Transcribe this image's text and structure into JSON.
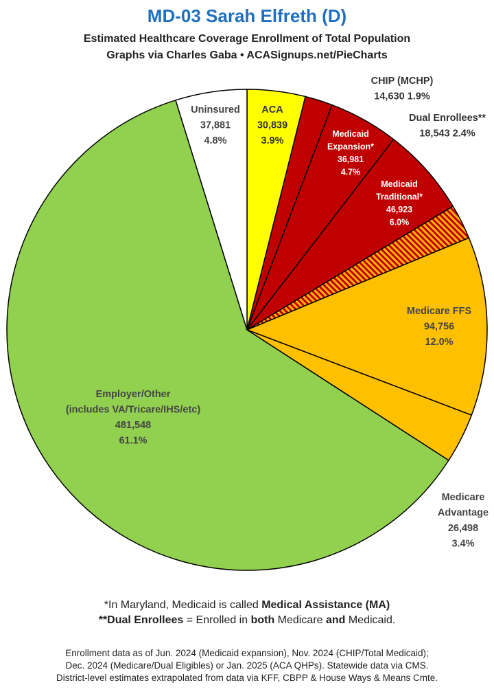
{
  "title": "MD-03 Sarah Elfreth (D)",
  "subtitle_line1": "Estimated Healthcare Coverage Enrollment of Total Population",
  "subtitle_line2": "Graphs via Charles Gaba  •  ACASignups.net/PieCharts",
  "chart_data": {
    "type": "pie",
    "total_start": "12 o'clock, clockwise",
    "slices": [
      {
        "key": "aca",
        "label_lines": [
          "ACA"
        ],
        "value": 30839,
        "value_text": "30,839",
        "pct_text": "3.9%",
        "pct": 3.9,
        "color": "#ffff00",
        "text_color": "#333333",
        "label_inside": true
      },
      {
        "key": "chip",
        "label_lines": [
          "CHIP (MCHP)"
        ],
        "value": 14630,
        "value_text": "14,630",
        "pct_text": "1.9%",
        "pct": 1.9,
        "color": "#c00000",
        "text_color": "#333333",
        "label_inside": false
      },
      {
        "key": "medicaid-expansion",
        "label_lines": [
          "Medicaid",
          "Expansion*"
        ],
        "value": 36981,
        "value_text": "36,981",
        "pct_text": "4.7%",
        "pct": 4.7,
        "color": "#c00000",
        "text_color": "#ffffff",
        "label_inside": true
      },
      {
        "key": "medicaid-traditional",
        "label_lines": [
          "Medicaid",
          "Traditional*"
        ],
        "value": 46923,
        "value_text": "46,923",
        "pct_text": "6.0%",
        "pct": 6.0,
        "color": "#c00000",
        "text_color": "#ffffff",
        "label_inside": true
      },
      {
        "key": "dual-enrollees",
        "label_lines": [
          "Dual Enrollees**"
        ],
        "value": 18543,
        "value_text": "18,543",
        "pct_text": "2.4%",
        "pct": 2.4,
        "color": "#c00000",
        "hatch_color": "#ffb400",
        "text_color": "#333333",
        "label_inside": false
      },
      {
        "key": "medicare-ffs",
        "label_lines": [
          "Medicare FFS"
        ],
        "value": 94756,
        "value_text": "94,756",
        "pct_text": "12.0%",
        "pct": 12.0,
        "color": "#ffc000",
        "text_color": "#444444",
        "label_inside": true
      },
      {
        "key": "medicare-advantage",
        "label_lines": [
          "Medicare",
          "Advantage"
        ],
        "value": 26498,
        "value_text": "26,498",
        "pct_text": "3.4%",
        "pct": 3.4,
        "color": "#ffc000",
        "text_color": "#444444",
        "label_inside": false
      },
      {
        "key": "employer-other",
        "label_lines": [
          "Employer/Other",
          "(includes VA/Tricare/IHS/etc)"
        ],
        "value": 481548,
        "value_text": "481,548",
        "pct_text": "61.1%",
        "pct": 61.1,
        "color": "#92d050",
        "text_color": "#444444",
        "label_inside": true
      },
      {
        "key": "uninsured",
        "label_lines": [
          "Uninsured"
        ],
        "value": 37881,
        "value_text": "37,881",
        "pct_text": "4.8%",
        "pct": 4.8,
        "color": "#ffffff",
        "text_color": "#444444",
        "label_inside": true
      }
    ]
  },
  "notes": {
    "line1_a": "*In Maryland, Medicaid is called ",
    "line1_b": "Medical Assistance (MA)",
    "line2_a": "**Dual Enrollees",
    "line2_b": " = Enrolled in ",
    "line2_c": "both",
    "line2_d": " Medicare ",
    "line2_e": "and",
    "line2_f": " Medicaid."
  },
  "footer": {
    "line1": "Enrollment data as of Jun. 2024 (Medicaid expansion), Nov. 2024 (CHIP/Total Medicaid);",
    "line2": "Dec. 2024 (Medicare/Dual Eligibles) or Jan. 2025 (ACA QHPs). Statewide data via CMS.",
    "line3": "District-level estimates extrapolated from data via KFF, CBPP & House Ways & Means Cmte."
  }
}
